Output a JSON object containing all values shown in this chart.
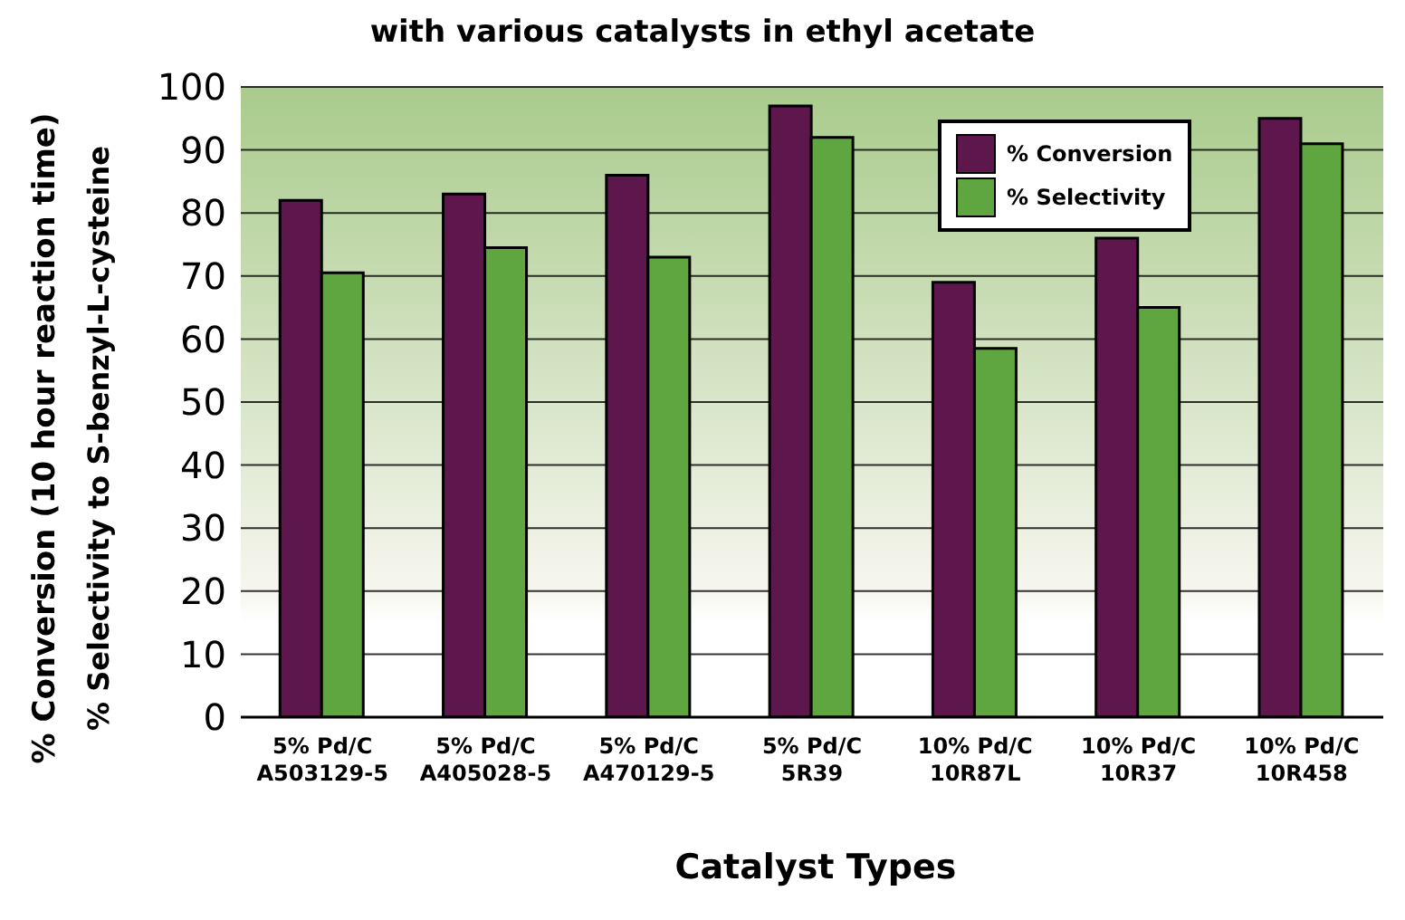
{
  "chart_data": {
    "type": "bar",
    "title": "with various catalysts in ethyl acetate",
    "xlabel": "Catalyst Types",
    "ylabel": "% Conversion (10 hour reaction time)\n% Selectivity to S-benzyl-L-cysteine",
    "categories": [
      "5% Pd/C\nA503129-5",
      "5% Pd/C\nA405028-5",
      "5% Pd/C\nA470129-5",
      "5% Pd/C\n5R39",
      "10% Pd/C\n10R87L",
      "10% Pd/C\n10R37",
      "10% Pd/C\n10R458"
    ],
    "series": [
      {
        "name": "% Conversion",
        "color": "#5e174d",
        "values": [
          82,
          83,
          86,
          97,
          69,
          76,
          95
        ]
      },
      {
        "name": "% Selectivity",
        "color": "#5fa641",
        "values": [
          70.5,
          74.5,
          73,
          92,
          58.5,
          65,
          91
        ]
      }
    ],
    "ylim": [
      0,
      100
    ],
    "yticks": [
      0,
      10,
      20,
      30,
      40,
      50,
      60,
      70,
      80,
      90,
      100
    ],
    "grid": "y",
    "legend": "top right"
  }
}
